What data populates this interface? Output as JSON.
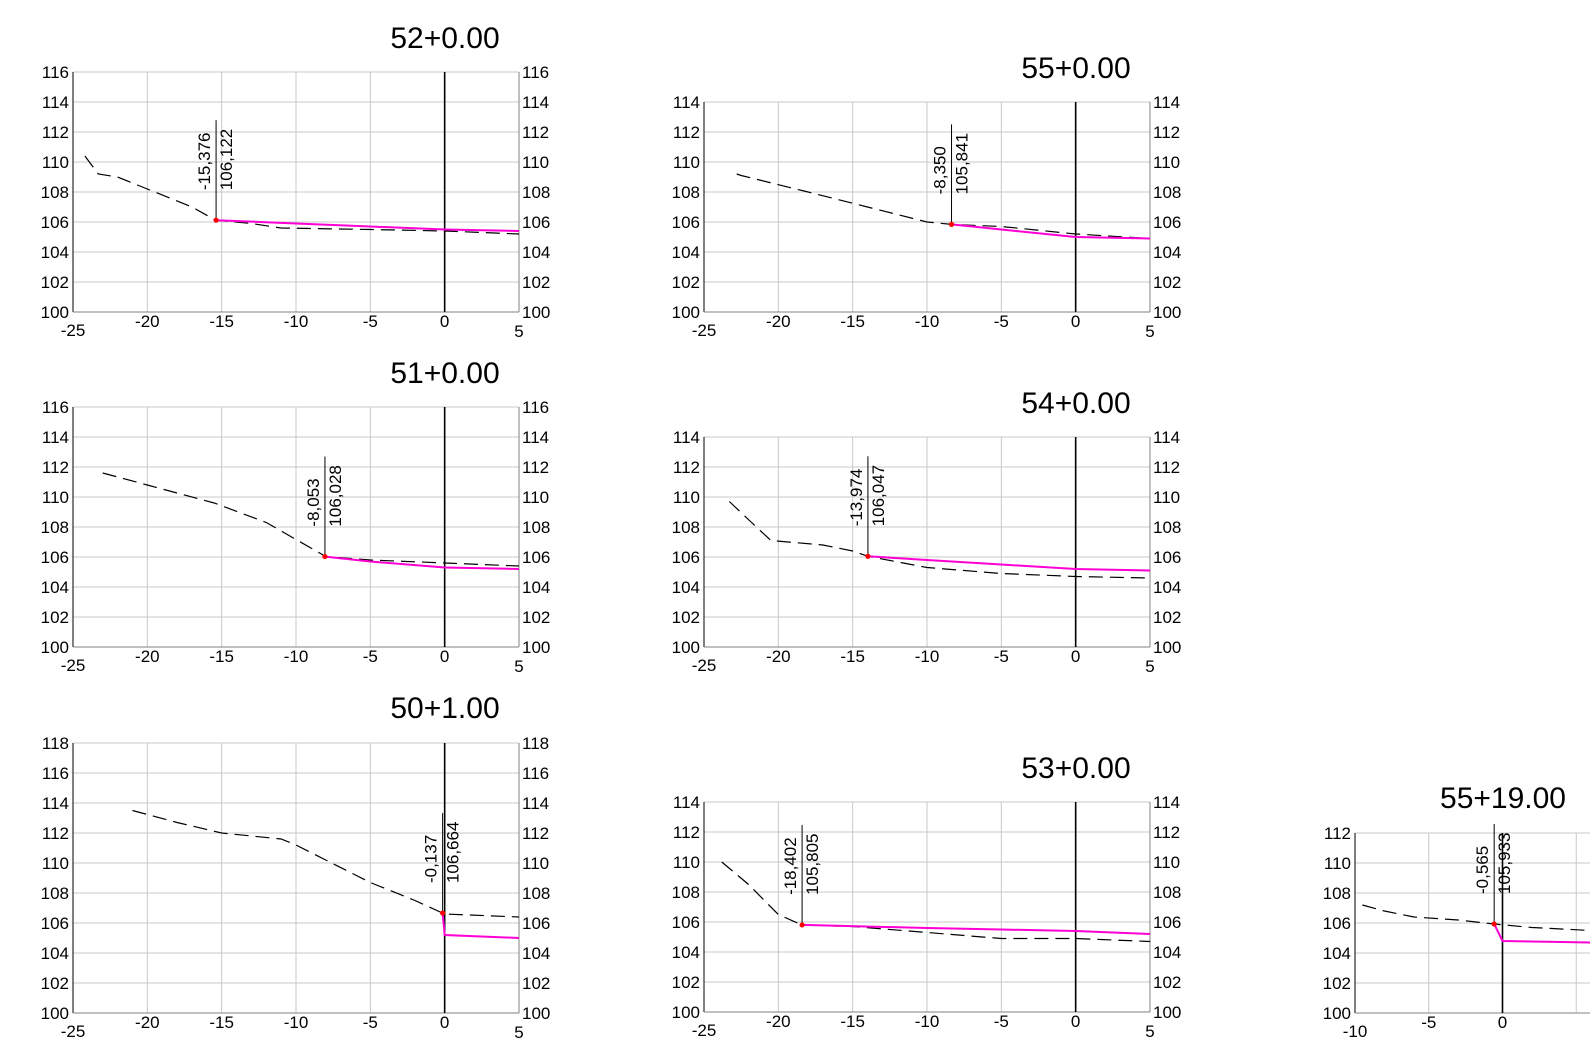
{
  "colors": {
    "grid": "#c8c8c8",
    "axis": "#000000",
    "ground": "#000000",
    "design": "#ff00d4",
    "point": "#ff0000",
    "background": "#ffffff"
  },
  "chart_data": [
    {
      "type": "line",
      "title": "52+0.00",
      "xlim": [
        -25,
        5
      ],
      "ylim": [
        100,
        116
      ],
      "ystep": 2,
      "xticks": [
        -25,
        -20,
        -15,
        -10,
        -5,
        0,
        5
      ],
      "series": [
        {
          "style": "dashed",
          "points": [
            [
              -24.2,
              110.4
            ],
            [
              -23.3,
              109.2
            ],
            [
              -22,
              109
            ],
            [
              -20,
              108.2
            ],
            [
              -17,
              107
            ],
            [
              -15.4,
              106.12
            ],
            [
              -13,
              105.9
            ],
            [
              -11,
              105.6
            ],
            [
              -5,
              105.5
            ],
            [
              0,
              105.4
            ],
            [
              5,
              105.2
            ]
          ]
        },
        {
          "style": "solid",
          "points": [
            [
              -15.376,
              106.122
            ],
            [
              -10,
              105.9
            ],
            [
              -5,
              105.7
            ],
            [
              0,
              105.5
            ],
            [
              5,
              105.4
            ]
          ]
        }
      ],
      "annotation": {
        "x": -15.376,
        "y": 106.122,
        "label_x": "-15,376",
        "label_y": "106,122"
      }
    },
    {
      "type": "line",
      "title": "51+0.00",
      "xlim": [
        -25,
        5
      ],
      "ylim": [
        100,
        116
      ],
      "ystep": 2,
      "xticks": [
        -25,
        -20,
        -15,
        -10,
        -5,
        0,
        5
      ],
      "series": [
        {
          "style": "dashed",
          "points": [
            [
              -23,
              111.6
            ],
            [
              -20,
              110.8
            ],
            [
              -15.5,
              109.6
            ],
            [
              -12,
              108.3
            ],
            [
              -9,
              106.6
            ],
            [
              -8,
              106.03
            ],
            [
              -5,
              105.8
            ],
            [
              0,
              105.6
            ],
            [
              5,
              105.4
            ]
          ]
        },
        {
          "style": "solid",
          "points": [
            [
              -8.053,
              106.028
            ],
            [
              -5,
              105.7
            ],
            [
              0,
              105.3
            ],
            [
              5,
              105.2
            ]
          ]
        }
      ],
      "annotation": {
        "x": -8.053,
        "y": 106.028,
        "label_x": "-8,053",
        "label_y": "106,028"
      }
    },
    {
      "type": "line",
      "title": "50+1.00",
      "xlim": [
        -25,
        5
      ],
      "ylim": [
        100,
        118
      ],
      "ystep": 2,
      "xticks": [
        -25,
        -20,
        -15,
        -10,
        -5,
        0,
        5
      ],
      "series": [
        {
          "style": "dashed",
          "points": [
            [
              -21,
              113.5
            ],
            [
              -18,
              112.7
            ],
            [
              -15,
              112
            ],
            [
              -11,
              111.6
            ],
            [
              -10,
              111.2
            ],
            [
              -8,
              110.2
            ],
            [
              -5,
              108.7
            ],
            [
              -2,
              107.5
            ],
            [
              -0.14,
              106.66
            ],
            [
              0,
              106.6
            ],
            [
              5,
              106.4
            ]
          ]
        },
        {
          "style": "solid",
          "points": [
            [
              -0.137,
              106.664
            ],
            [
              0,
              105.2
            ],
            [
              5,
              105.0
            ]
          ]
        }
      ],
      "annotation": {
        "x": -0.137,
        "y": 106.664,
        "label_x": "-0,137",
        "label_y": "106,664"
      }
    },
    {
      "type": "line",
      "title": "55+0.00",
      "xlim": [
        -25,
        5
      ],
      "ylim": [
        100,
        114
      ],
      "ystep": 2,
      "xticks": [
        -25,
        -20,
        -15,
        -10,
        -5,
        0,
        5
      ],
      "series": [
        {
          "style": "dashed",
          "points": [
            [
              -22.8,
              109.2
            ],
            [
              -22.5,
              109.1
            ],
            [
              -18,
              108
            ],
            [
              -14,
              107
            ],
            [
              -10,
              106
            ],
            [
              -8.35,
              105.84
            ],
            [
              -5,
              105.7
            ],
            [
              0,
              105.2
            ],
            [
              5,
              104.9
            ]
          ]
        },
        {
          "style": "solid",
          "points": [
            [
              -8.35,
              105.841
            ],
            [
              -5,
              105.5
            ],
            [
              0,
              105.0
            ],
            [
              5,
              104.9
            ]
          ]
        }
      ],
      "annotation": {
        "x": -8.35,
        "y": 105.841,
        "label_x": "-8,350",
        "label_y": "105,841"
      }
    },
    {
      "type": "line",
      "title": "54+0.00",
      "xlim": [
        -25,
        5
      ],
      "ylim": [
        100,
        114
      ],
      "ystep": 2,
      "xticks": [
        -25,
        -20,
        -15,
        -10,
        -5,
        0,
        5
      ],
      "series": [
        {
          "style": "dashed",
          "points": [
            [
              -23.3,
              109.7
            ],
            [
              -21.8,
              108.3
            ],
            [
              -20.5,
              107.1
            ],
            [
              -17,
              106.8
            ],
            [
              -15,
              106.4
            ],
            [
              -13.97,
              106.05
            ],
            [
              -10,
              105.3
            ],
            [
              -5,
              104.9
            ],
            [
              0,
              104.7
            ],
            [
              5,
              104.6
            ]
          ]
        },
        {
          "style": "solid",
          "points": [
            [
              -13.974,
              106.047
            ],
            [
              -10,
              105.8
            ],
            [
              -5,
              105.5
            ],
            [
              0,
              105.2
            ],
            [
              5,
              105.1
            ]
          ]
        }
      ],
      "annotation": {
        "x": -13.974,
        "y": 106.047,
        "label_x": "-13,974",
        "label_y": "106,047"
      }
    },
    {
      "type": "line",
      "title": "53+0.00",
      "xlim": [
        -25,
        5
      ],
      "ylim": [
        100,
        114
      ],
      "ystep": 2,
      "xticks": [
        -25,
        -20,
        -15,
        -10,
        -5,
        0,
        5
      ],
      "series": [
        {
          "style": "dashed",
          "points": [
            [
              -23.8,
              110
            ],
            [
              -22,
              108.5
            ],
            [
              -20,
              106.5
            ],
            [
              -18.4,
              105.8
            ],
            [
              -15,
              105.7
            ],
            [
              -10,
              105.3
            ],
            [
              -5,
              104.9
            ],
            [
              0,
              104.9
            ],
            [
              5,
              104.7
            ]
          ]
        },
        {
          "style": "solid",
          "points": [
            [
              -18.402,
              105.805
            ],
            [
              -10,
              105.6
            ],
            [
              -5,
              105.5
            ],
            [
              0,
              105.4
            ],
            [
              5,
              105.2
            ]
          ]
        }
      ],
      "annotation": {
        "x": -18.402,
        "y": 105.805,
        "label_x": "-18,402",
        "label_y": "105,805"
      }
    },
    {
      "type": "line",
      "title": "55+19.00",
      "xlim": [
        -10,
        10
      ],
      "ylim": [
        100,
        112
      ],
      "ystep": 2,
      "xticks": [
        -10,
        -5,
        0
      ],
      "series": [
        {
          "style": "dashed",
          "points": [
            [
              -9.5,
              107.2
            ],
            [
              -8,
              106.8
            ],
            [
              -6,
              106.4
            ],
            [
              -3,
              106.2
            ],
            [
              -0.57,
              105.93
            ],
            [
              2,
              105.7
            ],
            [
              6,
              105.5
            ]
          ]
        },
        {
          "style": "solid",
          "points": [
            [
              -0.565,
              105.933
            ],
            [
              0,
              104.8
            ],
            [
              3,
              104.75
            ],
            [
              6,
              104.7
            ]
          ]
        }
      ],
      "annotation": {
        "x": -0.565,
        "y": 105.933,
        "label_x": "-0,565",
        "label_y": "105,933"
      }
    }
  ]
}
